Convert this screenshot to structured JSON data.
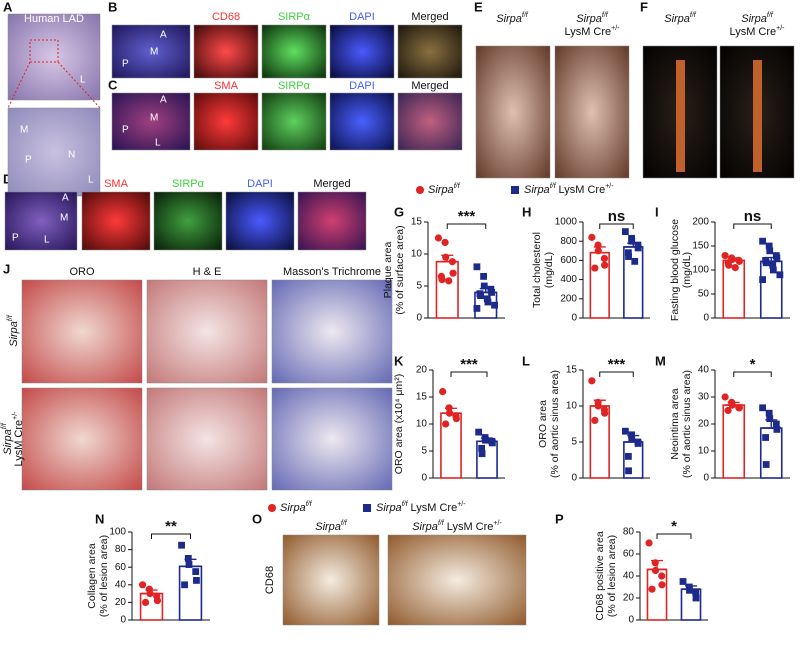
{
  "figure": {
    "panel_letters": [
      "A",
      "B",
      "C",
      "D",
      "E",
      "F",
      "G",
      "H",
      "I",
      "J",
      "K",
      "L",
      "M",
      "N",
      "O",
      "P"
    ],
    "a": {
      "title": "Human LAD",
      "regions_top": [
        "L"
      ],
      "regions_bottom": [
        "M",
        "P",
        "N",
        "L"
      ]
    },
    "b": {
      "channels": [
        "CD68",
        "SIRPα",
        "DAPI",
        "Merged"
      ],
      "regions": [
        "A",
        "M",
        "P"
      ]
    },
    "c": {
      "channels": [
        "SMA",
        "SIRPα",
        "DAPI",
        "Merged"
      ],
      "regions": [
        "A",
        "M",
        "P",
        "L"
      ]
    },
    "d": {
      "channels": [
        "SMA",
        "SIRPα",
        "DAPI",
        "Merged"
      ],
      "regions": [
        "A",
        "M",
        "P",
        "L"
      ]
    },
    "j": {
      "stains": [
        "ORO",
        "H & E",
        "Masson's Trichrome"
      ]
    },
    "o": {
      "ylabel": "CD68"
    }
  },
  "groups": [
    {
      "name": "Sirpa",
      "sup": "f/f",
      "color": "#e02424"
    },
    {
      "name": "Sirpa",
      "sup": "f/f",
      "suffix": "LysM Cre",
      "suffix_sup": "+/-",
      "color": "#1c2a8c"
    }
  ],
  "chart_data": [
    {
      "type": "bar",
      "ylabel": [
        "Plaque area",
        "(% of surface area)"
      ],
      "values": [
        8.8,
        4.0
      ],
      "errors": [
        1.0,
        0.6
      ],
      "points": [
        [
          12.5,
          11.8,
          9.5,
          8.8,
          7,
          6.5,
          6,
          5.8
        ],
        [
          8,
          6.5,
          5,
          4.5,
          4,
          3.8,
          3.5,
          3,
          2.5,
          2,
          1.5
        ]
      ],
      "significance": "***",
      "ylim": [
        0,
        15
      ],
      "yticks": [
        0,
        5,
        10,
        15
      ]
    },
    {
      "type": "bar",
      "ylabel": [
        "Total cholesterol",
        "(mg/dL)"
      ],
      "values": [
        680,
        740
      ],
      "errors": [
        60,
        40
      ],
      "points": [
        [
          840,
          760,
          700,
          620,
          550,
          520
        ],
        [
          900,
          830,
          800,
          760,
          730,
          680,
          640,
          590
        ]
      ],
      "significance": "ns",
      "ylim": [
        0,
        1000
      ],
      "yticks": [
        0,
        200,
        400,
        600,
        800,
        1000
      ]
    },
    {
      "type": "bar",
      "ylabel": [
        "Fasting blood glucose",
        "(mg/dL)"
      ],
      "values": [
        120,
        118
      ],
      "errors": [
        5,
        8
      ],
      "points": [
        [
          130,
          125,
          122,
          120,
          118,
          115,
          110,
          105
        ],
        [
          160,
          150,
          140,
          130,
          125,
          120,
          115,
          110,
          100,
          90,
          80
        ]
      ],
      "significance": "ns",
      "ylim": [
        0,
        200
      ],
      "yticks": [
        0,
        50,
        100,
        150,
        200
      ]
    },
    {
      "type": "bar",
      "ylabel": [
        "ORO area (x10⁴ μm²)"
      ],
      "values": [
        12,
        6.8
      ],
      "errors": [
        0.9,
        0.6
      ],
      "points": [
        [
          16,
          13,
          12,
          11.5,
          11,
          10
        ],
        [
          8.5,
          7.5,
          7,
          6.8,
          6.5,
          5.5,
          4.5
        ]
      ],
      "significance": "***",
      "ylim": [
        0,
        20
      ],
      "yticks": [
        0,
        5,
        10,
        15,
        20
      ]
    },
    {
      "type": "bar",
      "ylabel": [
        "ORO area",
        "(% of aortic sinus area)"
      ],
      "values": [
        10,
        5
      ],
      "errors": [
        0.8,
        0.9
      ],
      "points": [
        [
          13.5,
          10.5,
          10,
          9.5,
          9,
          8
        ],
        [
          6.5,
          6,
          5.5,
          5,
          4.8,
          3,
          1
        ]
      ],
      "significance": "***",
      "ylim": [
        0,
        15
      ],
      "yticks": [
        0,
        5,
        10,
        15
      ]
    },
    {
      "type": "bar",
      "ylabel": [
        "Neointima area",
        "(% of aortic sinus area)"
      ],
      "values": [
        27,
        18.5
      ],
      "errors": [
        1,
        3
      ],
      "points": [
        [
          30,
          28,
          27,
          26,
          26,
          25
        ],
        [
          26,
          24,
          22,
          20,
          18,
          15,
          5
        ]
      ],
      "significance": "*",
      "ylim": [
        0,
        40
      ],
      "yticks": [
        0,
        10,
        20,
        30,
        40
      ]
    },
    {
      "type": "bar",
      "ylabel": [
        "Collagen area",
        "(% of lesion area)"
      ],
      "values": [
        30,
        61
      ],
      "errors": [
        4,
        8
      ],
      "points": [
        [
          40,
          35,
          30,
          27,
          22,
          20
        ],
        [
          85,
          70,
          63,
          55,
          45,
          40
        ]
      ],
      "significance": "**",
      "ylim": [
        0,
        100
      ],
      "yticks": [
        0,
        20,
        40,
        60,
        80,
        100
      ]
    },
    {
      "type": "bar",
      "ylabel": [
        "CD68 positive area",
        "(% of lesion area)"
      ],
      "values": [
        46,
        28
      ],
      "errors": [
        8,
        3
      ],
      "points": [
        [
          70,
          52,
          45,
          40,
          32,
          28
        ],
        [
          35,
          30,
          27,
          25,
          20
        ]
      ],
      "significance": "*",
      "ylim": [
        0,
        80
      ],
      "yticks": [
        0,
        20,
        40,
        60,
        80
      ]
    }
  ]
}
